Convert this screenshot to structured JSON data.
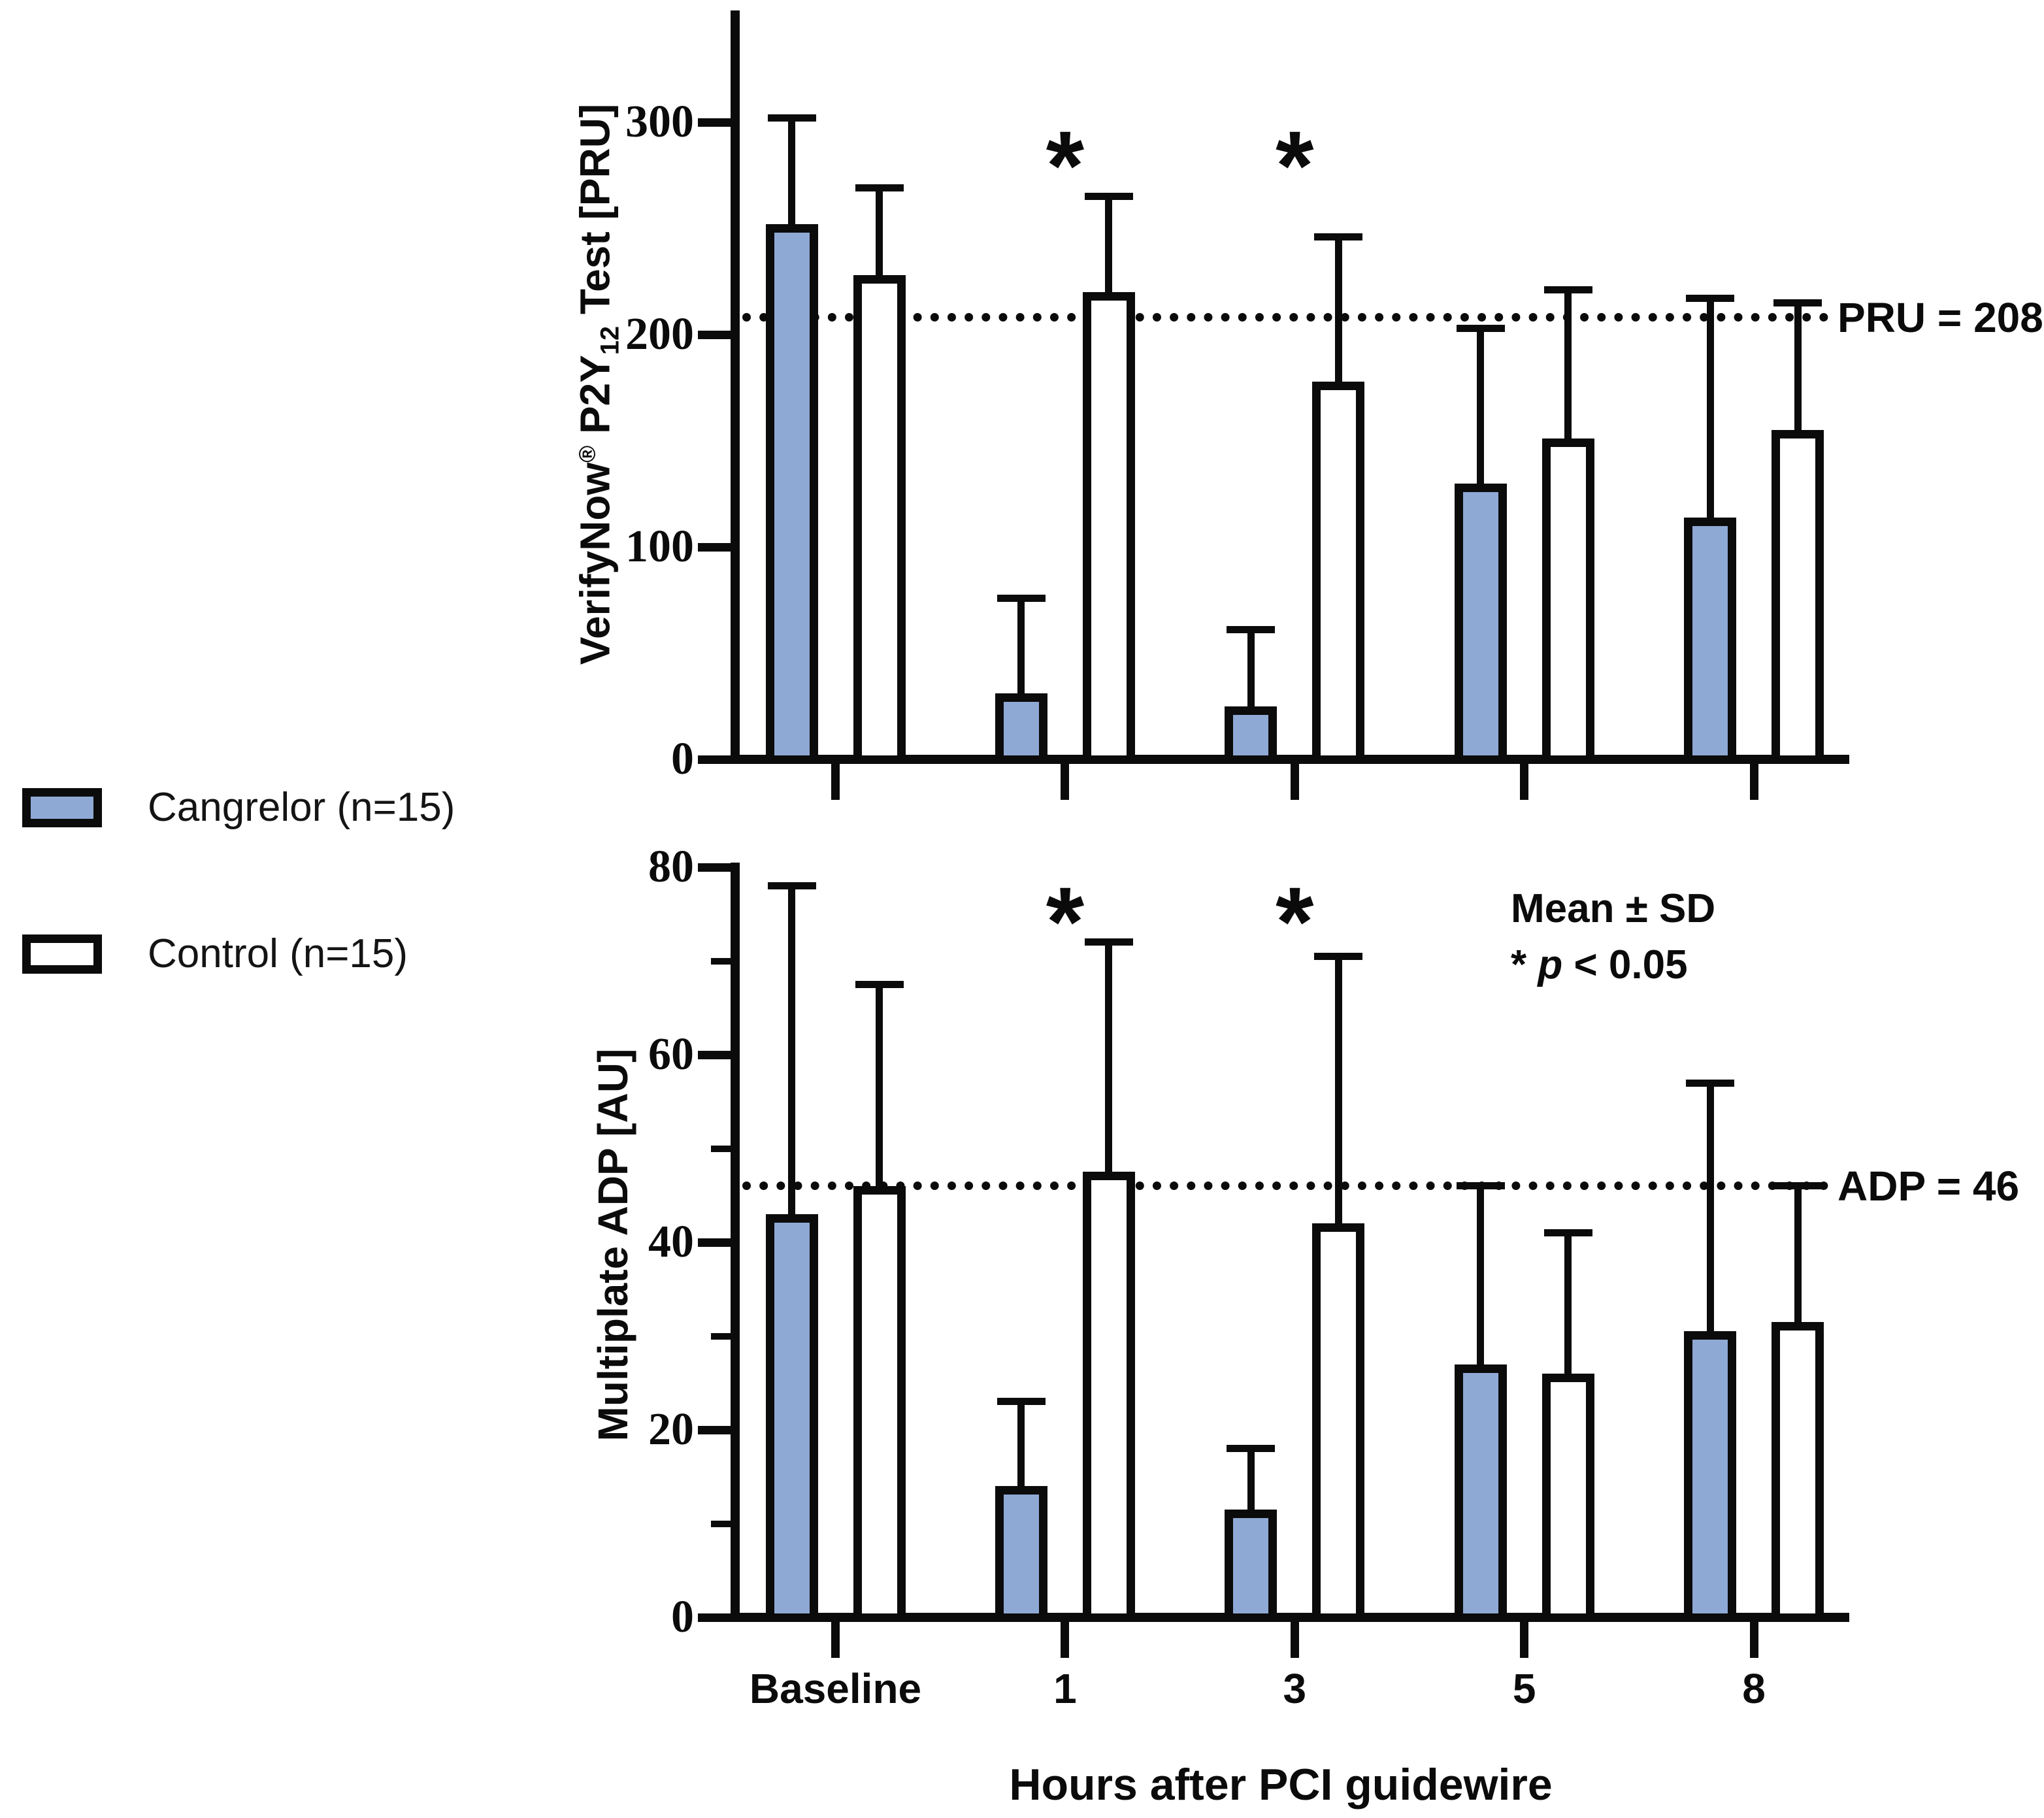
{
  "legend": {
    "items": [
      {
        "label": "Cangrelor (n=15)",
        "fill": "#8FA9D5"
      },
      {
        "label": "Control (n=15)",
        "fill": "#FFFFFF"
      }
    ]
  },
  "annotations": {
    "stats_line": "Mean ± SD",
    "sig_prefix": "* ",
    "sig_p": "p",
    "sig_suffix": " < 0.05"
  },
  "x_axis": {
    "title": "Hours after PCI guidewire",
    "categories": [
      "Baseline",
      "1",
      "3",
      "5",
      "8"
    ]
  },
  "chart_data": [
    {
      "type": "bar",
      "name": "verifynow-p2y12-pru",
      "y_title": {
        "pre": "VerifyNow",
        "sup": "®",
        "mid": " P2Y",
        "sub": "12",
        "post": " Test [PRU]"
      },
      "categories": [
        "Baseline",
        "1",
        "3",
        "5",
        "8"
      ],
      "ylim": [
        0,
        300
      ],
      "yticks": [
        0,
        100,
        200,
        300
      ],
      "minor_yticks": [],
      "grid": false,
      "series": [
        {
          "name": "Cangrelor (n=15)",
          "fill": "#8FA9D5",
          "means": [
            252,
            31,
            25,
            130,
            114
          ],
          "sd": [
            50,
            45,
            36,
            73,
            103
          ]
        },
        {
          "name": "Control (n=15)",
          "fill": "#FFFFFF",
          "means": [
            228,
            220,
            178,
            151,
            155
          ],
          "sd": [
            41,
            45,
            68,
            70,
            60
          ]
        }
      ],
      "threshold": {
        "value": 208,
        "label": "PRU = 208"
      },
      "significant_categories": [
        "1",
        "3"
      ]
    },
    {
      "type": "bar",
      "name": "multiplate-adp-au",
      "y_title": {
        "text": "Multiplate ADP [AU]"
      },
      "categories": [
        "Baseline",
        "1",
        "3",
        "5",
        "8"
      ],
      "ylim": [
        0,
        80
      ],
      "yticks": [
        0,
        20,
        40,
        60,
        80
      ],
      "minor_yticks": [
        10,
        30,
        50,
        70
      ],
      "grid": false,
      "series": [
        {
          "name": "Cangrelor (n=15)",
          "fill": "#8FA9D5",
          "means": [
            43,
            14,
            11.5,
            27,
            30.5
          ],
          "sd": [
            35,
            9,
            6.5,
            19,
            26.5
          ]
        },
        {
          "name": "Control (n=15)",
          "fill": "#FFFFFF",
          "means": [
            46,
            47.5,
            42,
            26,
            31.5
          ],
          "sd": [
            21.5,
            24.5,
            28.5,
            15,
            14.5
          ]
        }
      ],
      "threshold": {
        "value": 46,
        "label": "ADP = 46"
      },
      "significant_categories": [
        "1",
        "3"
      ]
    }
  ]
}
